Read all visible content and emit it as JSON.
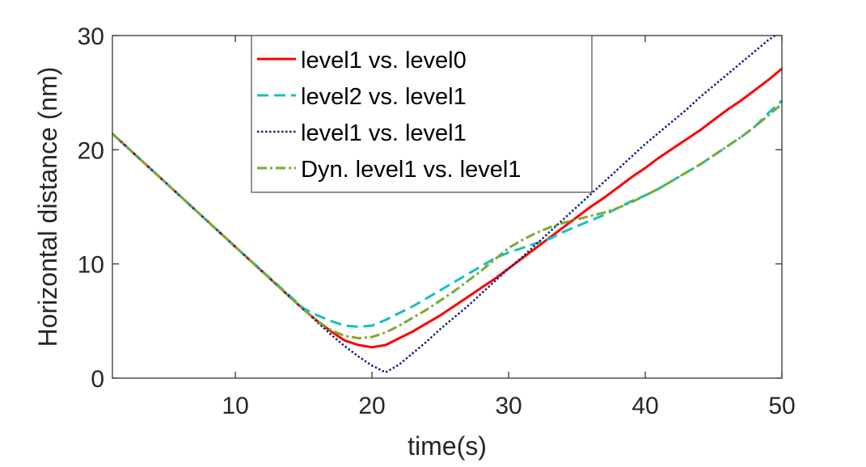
{
  "chart_data": {
    "type": "line",
    "title": "",
    "xlabel": "time(s)",
    "ylabel": "Horizontal distance (nm)",
    "xlim": [
      1,
      50
    ],
    "ylim": [
      0,
      30
    ],
    "xticks": [
      10,
      20,
      30,
      40,
      50
    ],
    "yticks": [
      0,
      10,
      20,
      30
    ],
    "grid": false,
    "legend_position": "top-center",
    "series": [
      {
        "name": "level1 vs. level0",
        "color": "#ff0000",
        "dash": "solid",
        "points": [
          [
            1,
            21.4
          ],
          [
            5,
            17.0
          ],
          [
            10,
            11.5
          ],
          [
            15,
            6.0
          ],
          [
            16,
            5.0
          ],
          [
            17,
            4.1
          ],
          [
            18,
            3.3
          ],
          [
            19,
            2.9
          ],
          [
            20,
            2.7
          ],
          [
            21,
            2.9
          ],
          [
            22,
            3.5
          ],
          [
            23,
            4.1
          ],
          [
            24,
            4.8
          ],
          [
            25,
            5.5
          ],
          [
            26,
            6.3
          ],
          [
            27,
            7.1
          ],
          [
            28,
            7.9
          ],
          [
            29,
            8.7
          ],
          [
            30,
            9.6
          ],
          [
            31,
            10.5
          ],
          [
            32,
            11.4
          ],
          [
            33,
            12.3
          ],
          [
            34,
            13.2
          ],
          [
            35,
            14.1
          ],
          [
            36,
            15.0
          ],
          [
            37,
            15.8
          ],
          [
            38,
            16.7
          ],
          [
            39,
            17.6
          ],
          [
            40,
            18.4
          ],
          [
            41,
            19.3
          ],
          [
            42,
            20.1
          ],
          [
            43,
            20.9
          ],
          [
            44,
            21.7
          ],
          [
            45,
            22.6
          ],
          [
            46,
            23.5
          ],
          [
            47,
            24.3
          ],
          [
            48,
            25.2
          ],
          [
            49,
            26.1
          ],
          [
            50,
            27.1
          ]
        ]
      },
      {
        "name": "level2 vs. level1",
        "color": "#17bfbf",
        "dash": "dashed",
        "points": [
          [
            1,
            21.4
          ],
          [
            5,
            17.0
          ],
          [
            10,
            11.5
          ],
          [
            15,
            6.1
          ],
          [
            16,
            5.5
          ],
          [
            17,
            5.0
          ],
          [
            18,
            4.6
          ],
          [
            19,
            4.5
          ],
          [
            20,
            4.6
          ],
          [
            21,
            5.1
          ],
          [
            22,
            5.7
          ],
          [
            23,
            6.3
          ],
          [
            24,
            7.0
          ],
          [
            25,
            7.7
          ],
          [
            26,
            8.4
          ],
          [
            27,
            9.1
          ],
          [
            28,
            9.8
          ],
          [
            29,
            10.5
          ],
          [
            30,
            11.0
          ],
          [
            31,
            11.4
          ],
          [
            32,
            11.8
          ],
          [
            33,
            12.2
          ],
          [
            34,
            12.8
          ],
          [
            35,
            13.3
          ],
          [
            36,
            13.8
          ],
          [
            37,
            14.3
          ],
          [
            38,
            14.9
          ],
          [
            39,
            15.5
          ],
          [
            40,
            16.0
          ],
          [
            41,
            16.6
          ],
          [
            42,
            17.3
          ],
          [
            43,
            18.0
          ],
          [
            44,
            18.7
          ],
          [
            45,
            19.5
          ],
          [
            46,
            20.3
          ],
          [
            47,
            21.1
          ],
          [
            48,
            22.0
          ],
          [
            49,
            23.2
          ],
          [
            50,
            24.3
          ]
        ]
      },
      {
        "name": "level1 vs. level1",
        "color": "#1a237e",
        "dash": "dotted",
        "points": [
          [
            1,
            21.4
          ],
          [
            5,
            17.0
          ],
          [
            10,
            11.5
          ],
          [
            15,
            6.0
          ],
          [
            16,
            4.9
          ],
          [
            17,
            3.8
          ],
          [
            18,
            2.8
          ],
          [
            19,
            1.9
          ],
          [
            20,
            1.1
          ],
          [
            21,
            0.5
          ],
          [
            22,
            1.2
          ],
          [
            23,
            2.2
          ],
          [
            24,
            3.2
          ],
          [
            25,
            4.3
          ],
          [
            26,
            5.3
          ],
          [
            27,
            6.3
          ],
          [
            28,
            7.4
          ],
          [
            29,
            8.5
          ],
          [
            30,
            9.6
          ],
          [
            31,
            10.6
          ],
          [
            32,
            11.7
          ],
          [
            33,
            12.8
          ],
          [
            34,
            13.9
          ],
          [
            35,
            15.0
          ],
          [
            36,
            16.1
          ],
          [
            37,
            17.2
          ],
          [
            38,
            18.3
          ],
          [
            39,
            19.4
          ],
          [
            40,
            20.5
          ],
          [
            41,
            21.5
          ],
          [
            42,
            22.5
          ],
          [
            43,
            23.5
          ],
          [
            44,
            24.6
          ],
          [
            45,
            25.6
          ],
          [
            46,
            26.6
          ],
          [
            47,
            27.6
          ],
          [
            48,
            28.6
          ],
          [
            49,
            29.6
          ],
          [
            49.5,
            30.0
          ]
        ]
      },
      {
        "name": "Dyn. level1 vs. level1",
        "color": "#7aab2f",
        "dash": "dashdot",
        "points": [
          [
            1,
            21.4
          ],
          [
            5,
            17.0
          ],
          [
            10,
            11.5
          ],
          [
            15,
            6.0
          ],
          [
            16,
            5.0
          ],
          [
            17,
            4.2
          ],
          [
            18,
            3.7
          ],
          [
            19,
            3.5
          ],
          [
            20,
            3.6
          ],
          [
            21,
            4.0
          ],
          [
            22,
            4.6
          ],
          [
            23,
            5.3
          ],
          [
            24,
            6.0
          ],
          [
            25,
            6.8
          ],
          [
            26,
            7.6
          ],
          [
            27,
            8.5
          ],
          [
            28,
            9.4
          ],
          [
            29,
            10.4
          ],
          [
            30,
            11.4
          ],
          [
            31,
            12.1
          ],
          [
            32,
            12.7
          ],
          [
            33,
            13.2
          ],
          [
            34,
            13.6
          ],
          [
            35,
            13.9
          ],
          [
            36,
            14.2
          ],
          [
            37,
            14.5
          ],
          [
            38,
            14.9
          ],
          [
            39,
            15.4
          ],
          [
            40,
            16.0
          ],
          [
            41,
            16.6
          ],
          [
            42,
            17.3
          ],
          [
            43,
            18.0
          ],
          [
            44,
            18.7
          ],
          [
            45,
            19.5
          ],
          [
            46,
            20.3
          ],
          [
            47,
            21.1
          ],
          [
            48,
            22.0
          ],
          [
            49,
            23.0
          ],
          [
            50,
            24.0
          ]
        ]
      }
    ]
  }
}
